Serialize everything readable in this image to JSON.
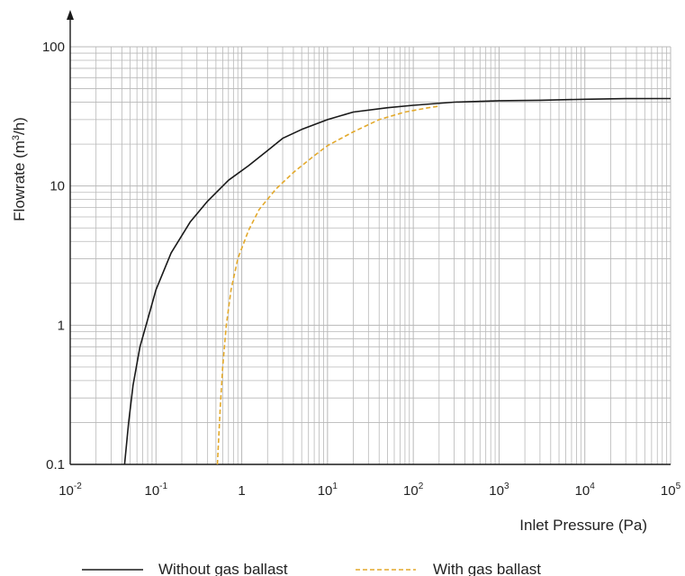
{
  "chart_data": {
    "type": "line",
    "xlabel": "Inlet Pressure (Pa)",
    "ylabel_parts": [
      "Flowrate (m",
      "3",
      "/h)"
    ],
    "x_scale": "log",
    "y_scale": "log",
    "xlim": [
      0.01,
      100000
    ],
    "ylim": [
      0.1,
      100
    ],
    "grid": true,
    "legend_position": "bottom",
    "x_ticks": [
      {
        "value": 0.01,
        "base": "10",
        "exp": "-2"
      },
      {
        "value": 0.1,
        "base": "10",
        "exp": "-1"
      },
      {
        "value": 1,
        "base": "1",
        "exp": ""
      },
      {
        "value": 10,
        "base": "10",
        "exp": "1"
      },
      {
        "value": 100,
        "base": "10",
        "exp": "2"
      },
      {
        "value": 1000,
        "base": "10",
        "exp": "3"
      },
      {
        "value": 10000,
        "base": "10",
        "exp": "4"
      },
      {
        "value": 100000,
        "base": "10",
        "exp": "5"
      }
    ],
    "y_ticks": [
      {
        "value": 0.1,
        "label": "0.1"
      },
      {
        "value": 1,
        "label": "1"
      },
      {
        "value": 10,
        "label": "10"
      },
      {
        "value": 100,
        "label": "100"
      }
    ],
    "series": [
      {
        "name": "Without gas ballast",
        "color": "#1a1a1a",
        "dash": "solid",
        "points": [
          [
            0.043,
            0.1
          ],
          [
            0.048,
            0.2
          ],
          [
            0.054,
            0.37
          ],
          [
            0.065,
            0.7
          ],
          [
            0.08,
            1.1
          ],
          [
            0.1,
            1.8
          ],
          [
            0.15,
            3.3
          ],
          [
            0.25,
            5.5
          ],
          [
            0.4,
            7.8
          ],
          [
            0.7,
            11
          ],
          [
            1.2,
            14
          ],
          [
            2,
            18
          ],
          [
            3,
            22
          ],
          [
            5,
            25.5
          ],
          [
            10,
            30
          ],
          [
            20,
            34
          ],
          [
            50,
            36.5
          ],
          [
            100,
            38
          ],
          [
            300,
            40
          ],
          [
            1000,
            41
          ],
          [
            3000,
            41.3
          ],
          [
            10000,
            42
          ],
          [
            30000,
            42.4
          ],
          [
            100000,
            42.5
          ]
        ]
      },
      {
        "name": "With gas ballast",
        "color": "#e3a92b",
        "dash": "dashed",
        "points": [
          [
            0.52,
            0.1
          ],
          [
            0.56,
            0.25
          ],
          [
            0.6,
            0.5
          ],
          [
            0.66,
            1.0
          ],
          [
            0.75,
            1.8
          ],
          [
            0.9,
            3.0
          ],
          [
            1.2,
            4.8
          ],
          [
            1.6,
            6.8
          ],
          [
            2.5,
            9.5
          ],
          [
            4,
            12.5
          ],
          [
            7,
            16.5
          ],
          [
            10,
            19.5
          ],
          [
            20,
            24.5
          ],
          [
            40,
            30
          ],
          [
            80,
            34
          ],
          [
            150,
            36.5
          ],
          [
            200,
            37.5
          ]
        ]
      }
    ]
  }
}
